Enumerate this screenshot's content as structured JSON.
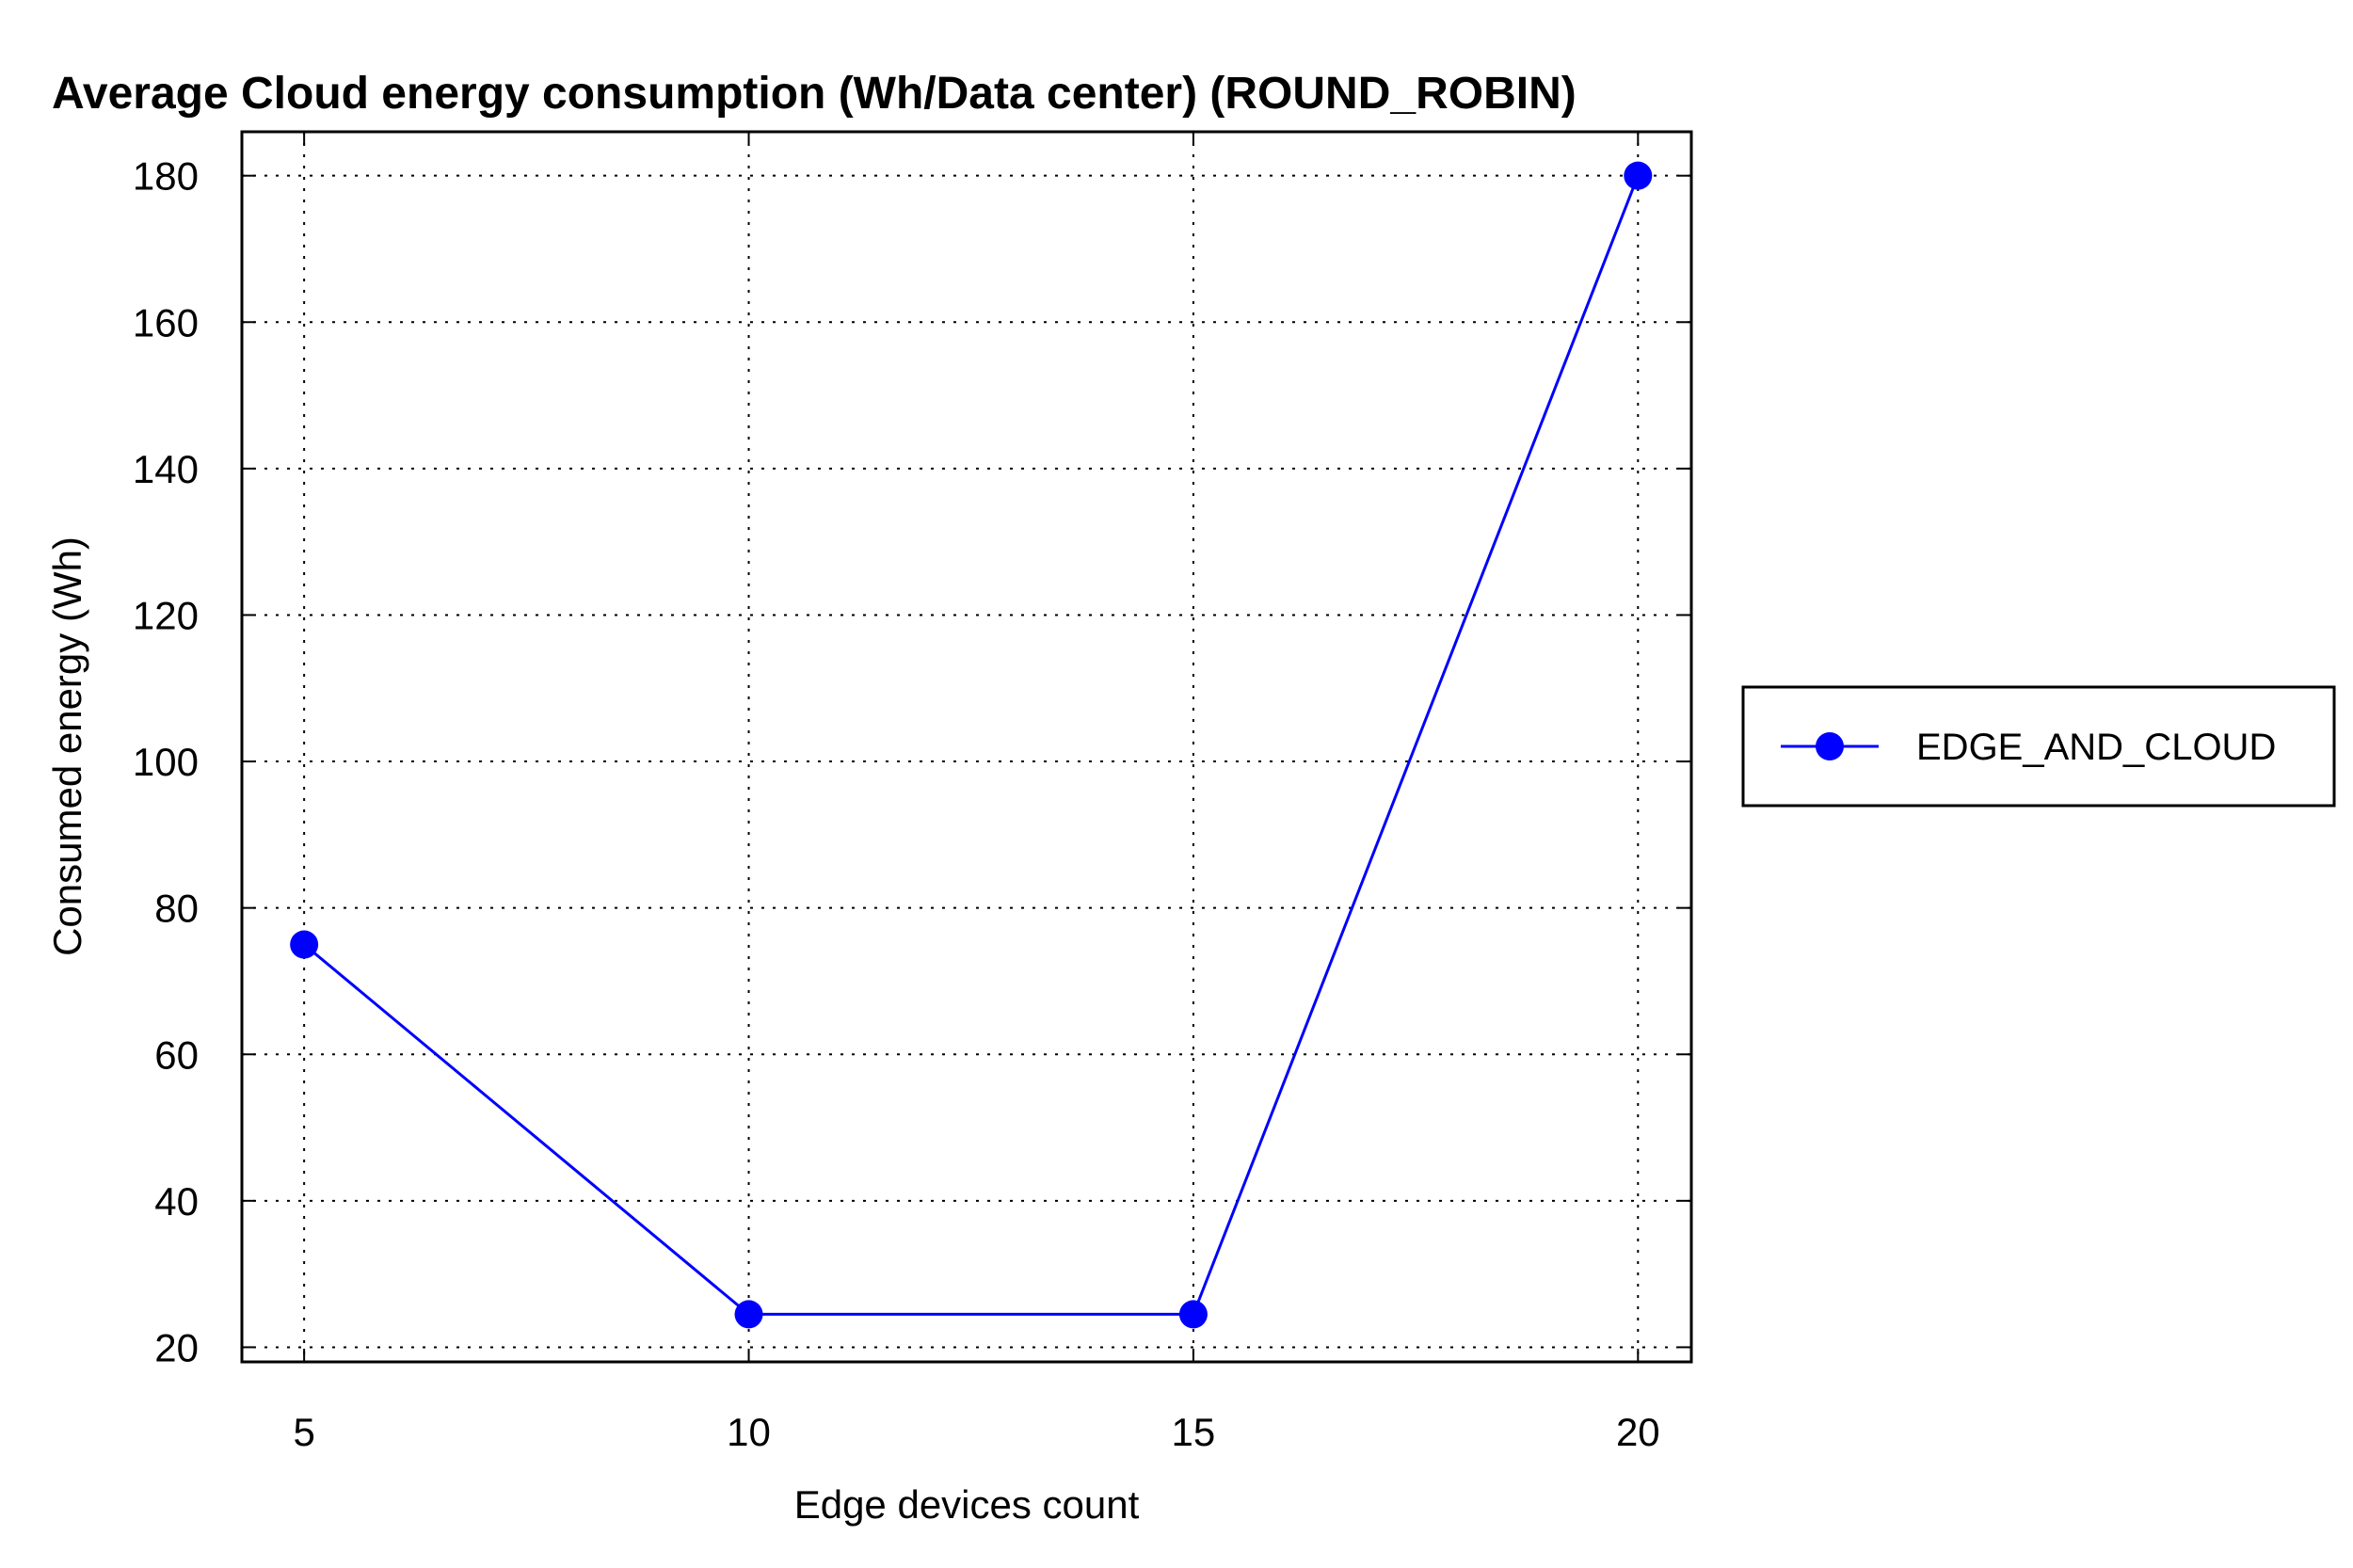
{
  "chart_data": {
    "type": "line",
    "title": "Average Cloud energy consumption (Wh/Data center) (ROUND_ROBIN)",
    "xlabel": "Edge devices count",
    "ylabel": "Consumed energy (Wh)",
    "x": [
      5,
      10,
      15,
      20
    ],
    "xlim": [
      4.3,
      20.6
    ],
    "ylim": [
      18,
      186
    ],
    "xticks": [
      5,
      10,
      15,
      20
    ],
    "yticks": [
      20,
      40,
      60,
      80,
      100,
      120,
      140,
      160,
      180
    ],
    "grid": true,
    "legend_position": "right",
    "series": [
      {
        "name": "EDGE_AND_CLOUD",
        "color": "#0000ff",
        "marker": "circle",
        "values": [
          75,
          24.5,
          24.5,
          180
        ]
      }
    ]
  }
}
